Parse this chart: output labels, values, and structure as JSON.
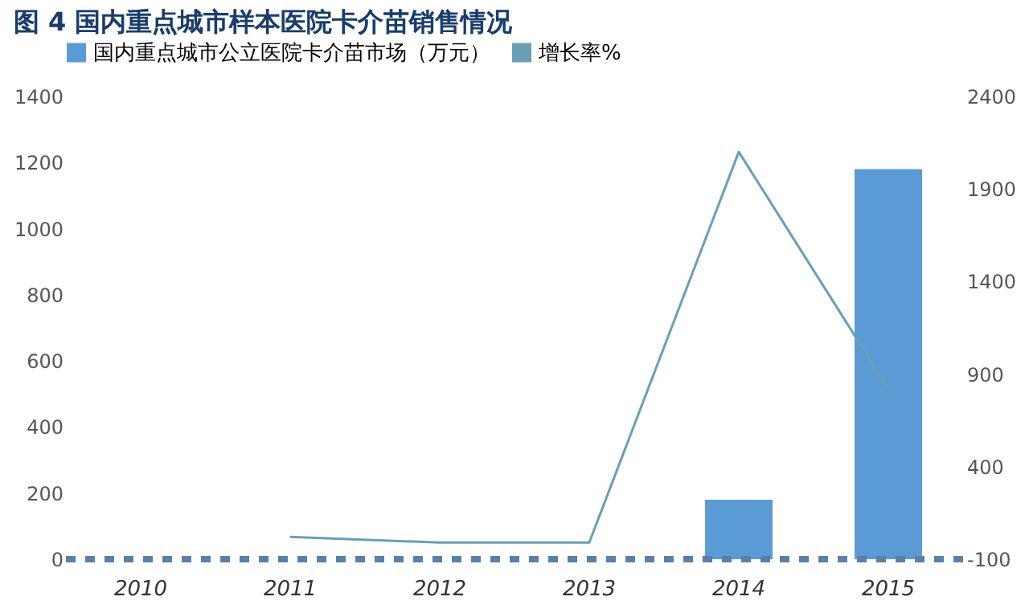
{
  "chart_data": {
    "type": "bar",
    "title": "图 4   国内重点城市样本医院卡介苗销售情况",
    "categories": [
      "2010",
      "2011",
      "2012",
      "2013",
      "2014",
      "2015"
    ],
    "series": [
      {
        "name": "国内重点城市公立医院卡介苗市场（万元）",
        "color": "#5b9bd5",
        "values": [
          null,
          null,
          null,
          null,
          180,
          1180
        ]
      },
      {
        "name": "增长率%",
        "type": "line",
        "axis": "y2",
        "color": "#6a9fb5",
        "values": [
          null,
          20,
          -10,
          -10,
          2100,
          820
        ]
      }
    ],
    "ylim": [
      0,
      1400
    ],
    "yticks": [
      0,
      200,
      400,
      600,
      800,
      1000,
      1200,
      1400
    ],
    "y2lim": [
      -100,
      2400
    ],
    "y2ticks": [
      -100,
      400,
      900,
      1400,
      1900,
      2400
    ],
    "ref_lines": [
      {
        "axis": "y",
        "value": 0,
        "color": "#5b7fa6",
        "line_style": "dashed"
      }
    ],
    "legend": "top",
    "grid": false,
    "marker": "none",
    "line_style": "solid"
  }
}
